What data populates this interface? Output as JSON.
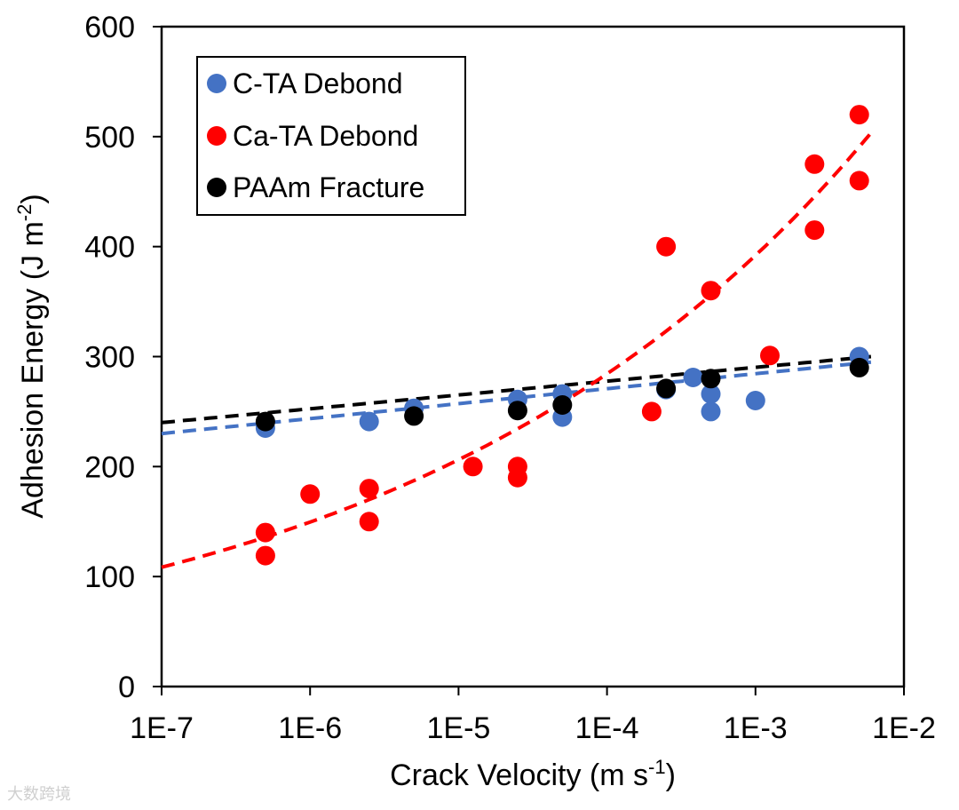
{
  "chart_data": {
    "type": "scatter",
    "title": "",
    "xlabel": "Crack Velocity (m s",
    "xlabel_sup": "-1",
    "xlabel_end": ")",
    "ylabel": "Adhesion Energy (J m",
    "ylabel_sup": "-2",
    "ylabel_end": ")",
    "xscale": "log",
    "xlim": [
      1e-07,
      0.01
    ],
    "ylim": [
      0,
      600
    ],
    "xticks": [
      {
        "value": 1e-07,
        "label": "1E-7"
      },
      {
        "value": 1e-06,
        "label": "1E-6"
      },
      {
        "value": 1e-05,
        "label": "1E-5"
      },
      {
        "value": 0.0001,
        "label": "1E-4"
      },
      {
        "value": 0.001,
        "label": "1E-3"
      },
      {
        "value": 0.01,
        "label": "1E-2"
      }
    ],
    "yticks": [
      {
        "value": 0,
        "label": "0"
      },
      {
        "value": 100,
        "label": "100"
      },
      {
        "value": 200,
        "label": "200"
      },
      {
        "value": 300,
        "label": "300"
      },
      {
        "value": 400,
        "label": "400"
      },
      {
        "value": 500,
        "label": "500"
      },
      {
        "value": 600,
        "label": "600"
      }
    ],
    "grid": false,
    "legend_position": "top-left",
    "series": [
      {
        "name": "C-TA Debond",
        "color": "#4472C4",
        "points": [
          [
            5e-07,
            235
          ],
          [
            2.5e-06,
            241
          ],
          [
            5e-06,
            253
          ],
          [
            2.5e-05,
            261
          ],
          [
            5e-05,
            266
          ],
          [
            5e-05,
            245
          ],
          [
            0.00025,
            270
          ],
          [
            0.00038,
            281
          ],
          [
            0.0005,
            266
          ],
          [
            0.0005,
            250
          ],
          [
            0.001,
            260
          ],
          [
            0.005,
            300
          ]
        ],
        "trend": {
          "type": "log-linear",
          "x_range": [
            1e-07,
            0.006
          ],
          "y_start": 230,
          "y_end": 295
        }
      },
      {
        "name": "Ca-TA Debond",
        "color": "#FF0000",
        "points": [
          [
            5e-07,
            140
          ],
          [
            5e-07,
            119
          ],
          [
            1e-06,
            175
          ],
          [
            2.5e-06,
            180
          ],
          [
            2.5e-06,
            150
          ],
          [
            1.25e-05,
            200
          ],
          [
            2.5e-05,
            200
          ],
          [
            2.5e-05,
            190
          ],
          [
            0.0002,
            250
          ],
          [
            0.00025,
            400
          ],
          [
            0.0005,
            360
          ],
          [
            0.00125,
            301
          ],
          [
            0.0025,
            475
          ],
          [
            0.0025,
            415
          ],
          [
            0.005,
            520
          ],
          [
            0.005,
            460
          ]
        ],
        "trend": {
          "type": "power",
          "x_range": [
            1e-07,
            0.006
          ],
          "a": 1027.6,
          "b": 0.1395
        }
      },
      {
        "name": "PAAm Fracture",
        "color": "#000000",
        "points": [
          [
            5e-07,
            241
          ],
          [
            5e-06,
            246
          ],
          [
            2.5e-05,
            251
          ],
          [
            5e-05,
            256
          ],
          [
            0.00025,
            271
          ],
          [
            0.0005,
            280
          ],
          [
            0.005,
            290
          ]
        ],
        "trend": {
          "type": "log-linear",
          "x_range": [
            1e-07,
            0.006
          ],
          "y_start": 240,
          "y_end": 300
        }
      }
    ]
  },
  "watermark": "大数跨境"
}
